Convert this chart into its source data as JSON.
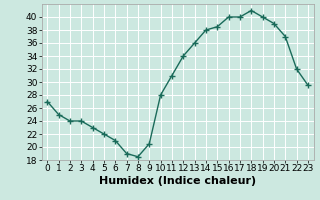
{
  "x": [
    0,
    1,
    2,
    3,
    4,
    5,
    6,
    7,
    8,
    9,
    10,
    11,
    12,
    13,
    14,
    15,
    16,
    17,
    18,
    19,
    20,
    21,
    22,
    23
  ],
  "y": [
    27,
    25,
    24,
    24,
    23,
    22,
    21,
    19,
    18.5,
    20.5,
    28,
    31,
    34,
    36,
    38,
    38.5,
    40,
    40,
    41,
    40,
    39,
    37,
    32,
    29.5
  ],
  "line_color": "#1a6b5a",
  "marker": "+",
  "marker_size": 4,
  "marker_lw": 1.0,
  "bg_color": "#cce8e0",
  "grid_color": "#ffffff",
  "xlabel": "Humidex (Indice chaleur)",
  "xlabel_fontsize": 8,
  "ylim": [
    18,
    42
  ],
  "xlim": [
    -0.5,
    23.5
  ],
  "yticks": [
    18,
    20,
    22,
    24,
    26,
    28,
    30,
    32,
    34,
    36,
    38,
    40
  ],
  "xticks": [
    0,
    1,
    2,
    3,
    4,
    5,
    6,
    7,
    8,
    9,
    10,
    11,
    12,
    13,
    14,
    15,
    16,
    17,
    18,
    19,
    20,
    21,
    22,
    23
  ],
  "tick_fontsize": 6.5,
  "line_width": 1.0
}
